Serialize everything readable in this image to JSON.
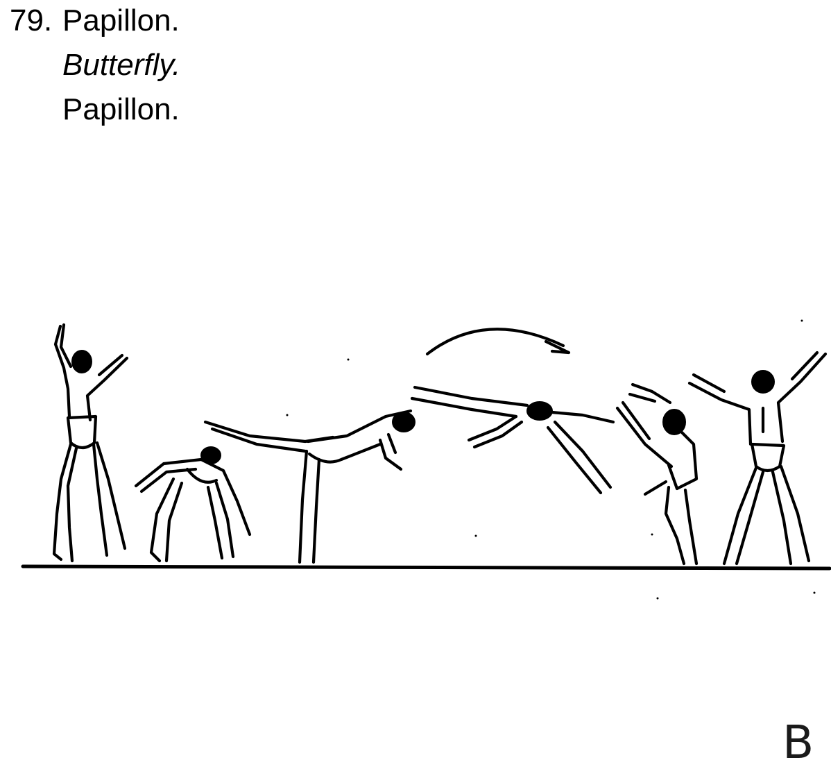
{
  "heading": {
    "number": "79.",
    "name_fr": "Papillon.",
    "name_en": "Butterfly.",
    "name_alt": "Papillon."
  },
  "figure": {
    "stages": [
      "standing-start",
      "crouch-lean",
      "forward-lean-leg-swing",
      "horizontal-butterfly-rotation",
      "landing",
      "finish-arms-raised"
    ],
    "rotation_direction": "clockwise",
    "corner_letter": "B"
  }
}
